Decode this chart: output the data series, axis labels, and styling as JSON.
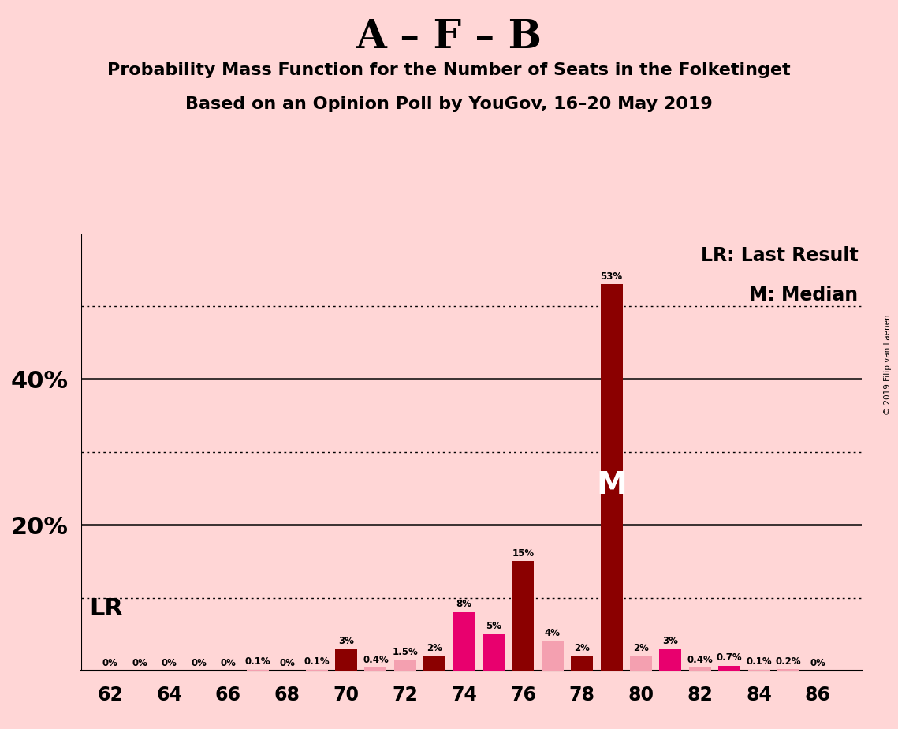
{
  "title": "A – F – B",
  "subtitle1": "Probability Mass Function for the Number of Seats in the Folketinget",
  "subtitle2": "Based on an Opinion Poll by YouGov, 16–20 May 2019",
  "copyright": "© 2019 Filip van Laenen",
  "background_color": "#FFD6D6",
  "seats": [
    62,
    63,
    64,
    65,
    66,
    67,
    68,
    69,
    70,
    71,
    72,
    73,
    74,
    75,
    76,
    77,
    78,
    79,
    80,
    81,
    82,
    83,
    84,
    85,
    86
  ],
  "values": [
    0.0,
    0.0,
    0.0,
    0.0,
    0.0,
    0.1,
    0.0,
    0.1,
    3.0,
    0.4,
    1.5,
    2.0,
    8.0,
    5.0,
    15.0,
    4.0,
    2.0,
    53.0,
    2.0,
    3.0,
    0.4,
    0.7,
    0.1,
    0.2,
    0.0
  ],
  "labels": [
    "0%",
    "0%",
    "0%",
    "0%",
    "0%",
    "0.1%",
    "0%",
    "0.1%",
    "3%",
    "0.4%",
    "1.5%",
    "2%",
    "8%",
    "5%",
    "15%",
    "4%",
    "2%",
    "53%",
    "2%",
    "3%",
    "0.4%",
    "0.7%",
    "0.1%",
    "0.2%",
    "0%"
  ],
  "colors": [
    "#F4A0B0",
    "#F4A0B0",
    "#F4A0B0",
    "#F4A0B0",
    "#F4A0B0",
    "#F4A0B0",
    "#F4A0B0",
    "#F4A0B0",
    "#8B0000",
    "#F4A0B0",
    "#F4A0B0",
    "#8B0000",
    "#E8006E",
    "#E8006E",
    "#8B0000",
    "#F4A0B0",
    "#8B0000",
    "#8B0000",
    "#F4A0B0",
    "#E8006E",
    "#F4A0B0",
    "#E8006E",
    "#F4A0B0",
    "#F4A0B0",
    "#F4A0B0"
  ],
  "last_result_seat": 78,
  "median_seat": 79,
  "ylim": [
    0,
    60
  ],
  "solid_hlines": [
    20,
    40
  ],
  "dotted_hlines": [
    10,
    30,
    50
  ],
  "legend_lr": "LR: Last Result",
  "legend_m": "M: Median",
  "lr_label": "LR",
  "median_label": "M",
  "xlim_left": 61.0,
  "xlim_right": 87.5
}
